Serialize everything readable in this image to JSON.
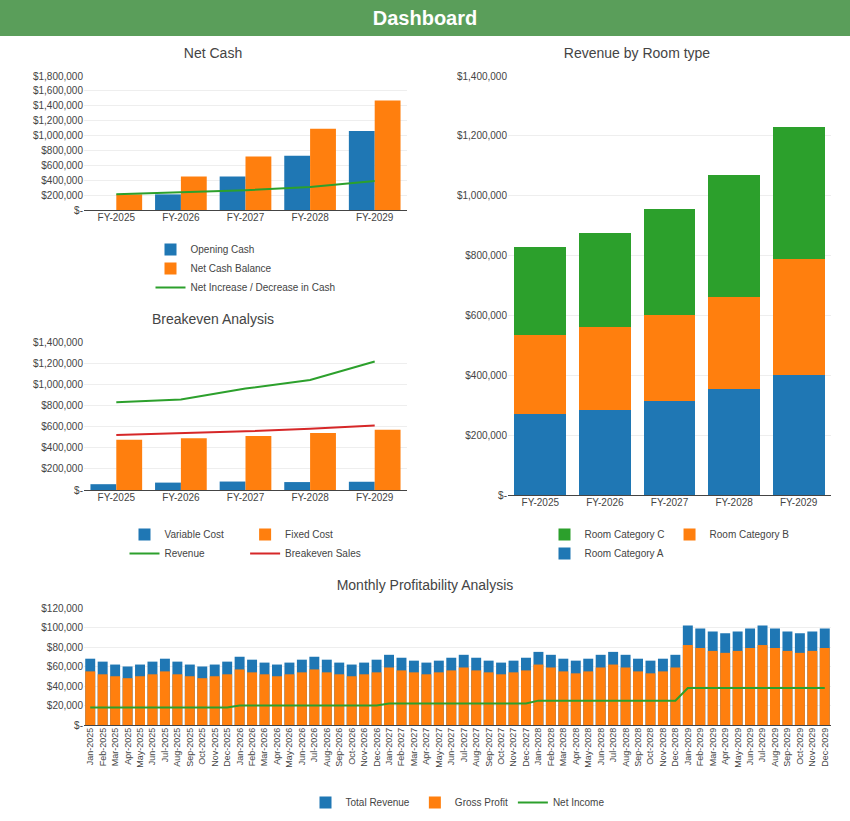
{
  "title": "Dashboard",
  "chart_data": [
    {
      "type": "bar",
      "title": "Net Cash",
      "categories": [
        "FY-2025",
        "FY-2026",
        "FY-2027",
        "FY-2028",
        "FY-2029"
      ],
      "series": [
        {
          "name": "Opening Cash",
          "values": [
            0,
            210000,
            450000,
            730000,
            1060000
          ]
        },
        {
          "name": "Net Cash Balance",
          "values": [
            210000,
            450000,
            720000,
            1090000,
            1470000
          ]
        },
        {
          "name": "Net Increase / Decrease in Cash",
          "type": "line",
          "values": [
            210000,
            235000,
            265000,
            310000,
            390000
          ]
        }
      ],
      "ylim": [
        0,
        1800000
      ],
      "yticks": [
        {
          "value": 0,
          "label": "$-"
        },
        {
          "value": 200000,
          "label": "$200,000"
        },
        {
          "value": 400000,
          "label": "$400,000"
        },
        {
          "value": 600000,
          "label": "$600,000"
        },
        {
          "value": 800000,
          "label": "$800,000"
        },
        {
          "value": 1000000,
          "label": "$1,000,000"
        },
        {
          "value": 1200000,
          "label": "$1,200,000"
        },
        {
          "value": 1400000,
          "label": "$1,400,000"
        },
        {
          "value": 1600000,
          "label": "$1,600,000"
        },
        {
          "value": 1800000,
          "label": "$1,800,000"
        }
      ],
      "grid": true,
      "legend": "bottom"
    },
    {
      "type": "bar",
      "title": "Breakeven Analysis",
      "categories": [
        "FY-2025",
        "FY-2026",
        "FY-2027",
        "FY-2028",
        "FY-2029"
      ],
      "series": [
        {
          "name": "Variable Cost",
          "values": [
            55000,
            70000,
            80000,
            75000,
            78000
          ]
        },
        {
          "name": "Fixed Cost",
          "values": [
            475000,
            490000,
            510000,
            540000,
            570000
          ]
        },
        {
          "name": "Revenue",
          "type": "line",
          "values": [
            830000,
            855000,
            960000,
            1040000,
            1215000
          ]
        },
        {
          "name": "Breakeven Sales",
          "type": "line",
          "values": [
            520000,
            535000,
            555000,
            580000,
            610000
          ]
        }
      ],
      "ylim": [
        0,
        1400000
      ],
      "yticks": [
        {
          "value": 0,
          "label": "$-"
        },
        {
          "value": 200000,
          "label": "$200,000"
        },
        {
          "value": 400000,
          "label": "$400,000"
        },
        {
          "value": 600000,
          "label": "$600,000"
        },
        {
          "value": 800000,
          "label": "$800,000"
        },
        {
          "value": 1000000,
          "label": "$1,000,000"
        },
        {
          "value": 1200000,
          "label": "$1,200,000"
        },
        {
          "value": 1400000,
          "label": "$1,400,000"
        }
      ],
      "grid": true,
      "legend": "bottom"
    },
    {
      "type": "bar",
      "title": "Revenue by Room type",
      "stacked": true,
      "categories": [
        "FY-2025",
        "FY-2026",
        "FY-2027",
        "FY-2028",
        "FY-2029"
      ],
      "series": [
        {
          "name": "Room Category A",
          "values": [
            270000,
            285000,
            315000,
            355000,
            400000
          ]
        },
        {
          "name": "Room Category B",
          "values": [
            265000,
            275000,
            285000,
            305000,
            390000
          ]
        },
        {
          "name": "Room Category C",
          "values": [
            295000,
            315000,
            355000,
            410000,
            440000
          ]
        }
      ],
      "ylim": [
        0,
        1400000
      ],
      "yticks": [
        {
          "value": 0,
          "label": "$-"
        },
        {
          "value": 200000,
          "label": "$200,000"
        },
        {
          "value": 400000,
          "label": "$400,000"
        },
        {
          "value": 600000,
          "label": "$600,000"
        },
        {
          "value": 800000,
          "label": "$800,000"
        },
        {
          "value": 1000000,
          "label": "$1,000,000"
        },
        {
          "value": 1200000,
          "label": "$1,200,000"
        },
        {
          "value": 1400000,
          "label": "$1,400,000"
        }
      ],
      "grid": true,
      "legend": "bottom"
    },
    {
      "type": "bar",
      "title": "Monthly Profitability Analysis",
      "categories": [
        "Jan-2025",
        "Feb-2025",
        "Mar-2025",
        "Apr-2025",
        "May-2025",
        "Jun-2025",
        "Jul-2025",
        "Aug-2025",
        "Sep-2025",
        "Oct-2025",
        "Nov-2025",
        "Dec-2025",
        "Jan-2026",
        "Feb-2026",
        "Mar-2026",
        "Apr-2026",
        "May-2026",
        "Jun-2026",
        "Jul-2026",
        "Aug-2026",
        "Sep-2026",
        "Oct-2026",
        "Nov-2026",
        "Dec-2026",
        "Jan-2027",
        "Feb-2027",
        "Mar-2027",
        "Apr-2027",
        "May-2027",
        "Jun-2027",
        "Jul-2027",
        "Aug-2027",
        "Sep-2027",
        "Oct-2027",
        "Nov-2027",
        "Dec-2027",
        "Jan-2028",
        "Feb-2028",
        "Mar-2028",
        "Apr-2028",
        "May-2028",
        "Jun-2028",
        "Jul-2028",
        "Aug-2028",
        "Sep-2028",
        "Oct-2028",
        "Nov-2028",
        "Dec-2028",
        "Jan-2029",
        "Feb-2029",
        "Mar-2029",
        "Apr-2029",
        "May-2029",
        "Jun-2029",
        "Jul-2029",
        "Aug-2029",
        "Sep-2029",
        "Oct-2029",
        "Nov-2029",
        "Dec-2029"
      ],
      "series": [
        {
          "name": "Total Revenue",
          "values": [
            68000,
            65000,
            62000,
            60000,
            62000,
            65000,
            68000,
            65000,
            62000,
            60000,
            62000,
            65000,
            70000,
            67000,
            64000,
            62000,
            64000,
            67000,
            70000,
            67000,
            64000,
            62000,
            64000,
            67000,
            72000,
            69000,
            66000,
            64000,
            66000,
            69000,
            72000,
            69000,
            66000,
            64000,
            66000,
            69000,
            75000,
            72000,
            68000,
            66000,
            68000,
            72000,
            75000,
            72000,
            68000,
            66000,
            68000,
            72000,
            102000,
            99000,
            96000,
            94000,
            96000,
            99000,
            102000,
            99000,
            96000,
            94000,
            96000,
            99000
          ]
        },
        {
          "name": "Gross Profit",
          "values": [
            55000,
            52000,
            50000,
            48000,
            50000,
            52000,
            55000,
            52000,
            50000,
            48000,
            50000,
            52000,
            57000,
            54000,
            52000,
            50000,
            52000,
            54000,
            57000,
            54000,
            52000,
            50000,
            52000,
            54000,
            59000,
            56000,
            54000,
            52000,
            54000,
            56000,
            59000,
            56000,
            54000,
            52000,
            54000,
            56000,
            62000,
            59000,
            55000,
            53000,
            55000,
            59000,
            62000,
            59000,
            55000,
            53000,
            55000,
            59000,
            82000,
            79000,
            76000,
            74000,
            76000,
            79000,
            82000,
            79000,
            76000,
            74000,
            76000,
            79000
          ]
        },
        {
          "name": "Net Income",
          "type": "line",
          "values": [
            18000,
            18000,
            18000,
            18000,
            18000,
            18000,
            18000,
            18000,
            18000,
            18000,
            18000,
            18000,
            20000,
            20000,
            20000,
            20000,
            20000,
            20000,
            20000,
            20000,
            20000,
            20000,
            20000,
            20000,
            22000,
            22000,
            22000,
            22000,
            22000,
            22000,
            22000,
            22000,
            22000,
            22000,
            22000,
            22000,
            25000,
            25000,
            25000,
            25000,
            25000,
            25000,
            25000,
            25000,
            25000,
            25000,
            25000,
            25000,
            38000,
            38000,
            38000,
            38000,
            38000,
            38000,
            38000,
            38000,
            38000,
            38000,
            38000,
            38000
          ]
        }
      ],
      "ylim": [
        0,
        120000
      ],
      "yticks": [
        {
          "value": 0,
          "label": "$-"
        },
        {
          "value": 20000,
          "label": "$20,000"
        },
        {
          "value": 40000,
          "label": "$40,000"
        },
        {
          "value": 60000,
          "label": "$60,000"
        },
        {
          "value": 80000,
          "label": "$80,000"
        },
        {
          "value": 100000,
          "label": "$100,000"
        },
        {
          "value": 120000,
          "label": "$120,000"
        }
      ],
      "grid": true,
      "legend": "bottom"
    }
  ]
}
